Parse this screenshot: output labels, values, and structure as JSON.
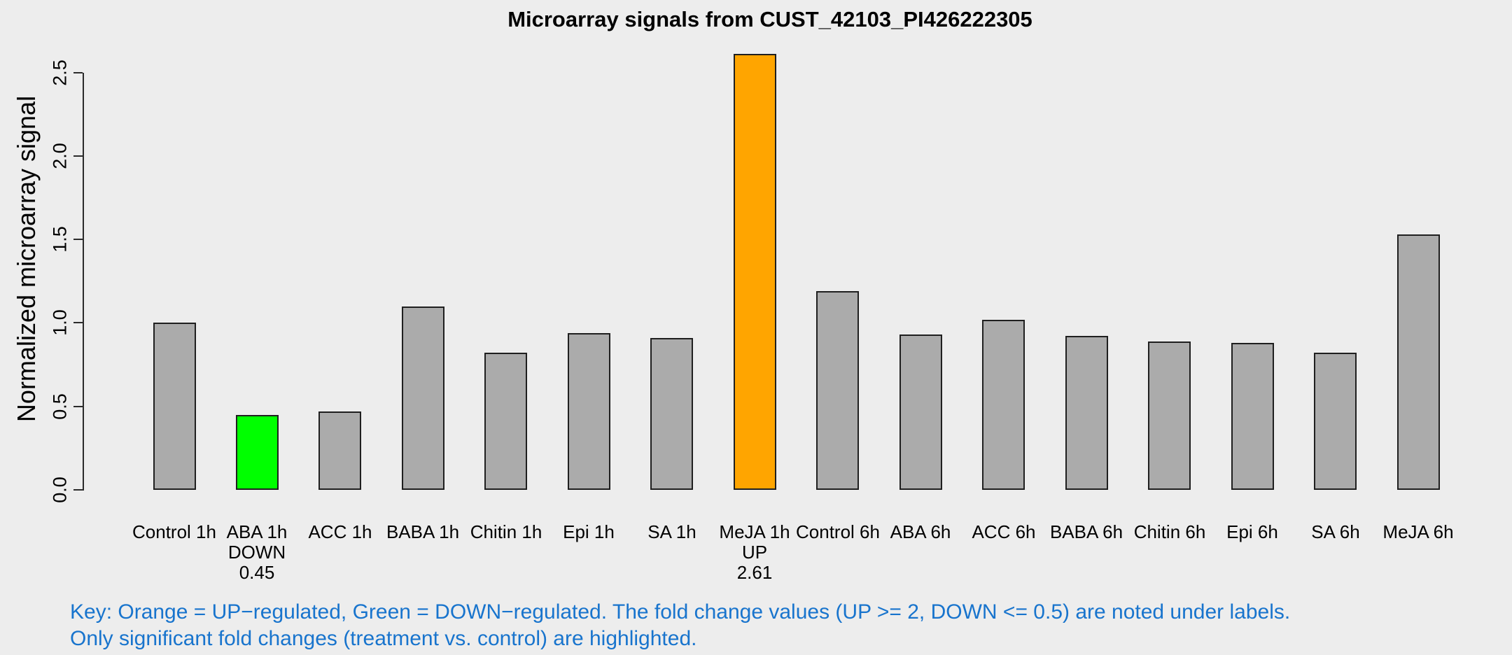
{
  "title": "Microarray signals from CUST_42103_PI426222305",
  "y_axis": {
    "label": "Normalized microarray signal",
    "ticks": [
      "0.0",
      "0.5",
      "1.0",
      "1.5",
      "2.0",
      "2.5"
    ]
  },
  "key": {
    "line1": "Key: Orange = UP−regulated, Green = DOWN−regulated. The fold change values (UP >= 2, DOWN <= 0.5) are noted under labels.",
    "line2": "Only significant fold changes (treatment vs. control) are highlighted.",
    "text_color": "#1874CD"
  },
  "colors": {
    "up_orange": "#FFA500",
    "down_green": "#00FF00",
    "bar_gray": "#ABABAB",
    "bar_border": "#1F1F1F",
    "background": "#EDEDED",
    "axis": "#2B2B2B"
  },
  "chart_data": {
    "type": "bar",
    "title": "Microarray signals from CUST_42103_PI426222305",
    "xlabel": "",
    "ylabel": "Normalized microarray signal",
    "ylim": [
      0,
      2.65
    ],
    "ytick_values": [
      0.0,
      0.5,
      1.0,
      1.5,
      2.0,
      2.5
    ],
    "ytick_labels": [
      "0.0",
      "0.5",
      "1.0",
      "1.5",
      "2.0",
      "2.5"
    ],
    "grid": false,
    "legend": "none",
    "categories": [
      "Control 1h",
      "ABA 1h",
      "ACC 1h",
      "BABA 1h",
      "Chitin 1h",
      "Epi 1h",
      "SA 1h",
      "MeJA 1h",
      "Control 6h",
      "ABA 6h",
      "ACC 6h",
      "BABA 6h",
      "Chitin 6h",
      "Epi 6h",
      "SA 6h",
      "MeJA 6h"
    ],
    "values": [
      1.0,
      0.45,
      0.47,
      1.1,
      0.82,
      0.94,
      0.91,
      2.61,
      1.19,
      0.93,
      1.02,
      0.92,
      0.89,
      0.88,
      0.82,
      1.53
    ],
    "bars": [
      {
        "label": "Control 1h",
        "value": 1.0,
        "regulation": "none",
        "annotation": []
      },
      {
        "label": "ABA 1h",
        "value": 0.45,
        "regulation": "down",
        "annotation": [
          "DOWN",
          "0.45"
        ]
      },
      {
        "label": "ACC 1h",
        "value": 0.47,
        "regulation": "none",
        "annotation": []
      },
      {
        "label": "BABA 1h",
        "value": 1.1,
        "regulation": "none",
        "annotation": []
      },
      {
        "label": "Chitin 1h",
        "value": 0.82,
        "regulation": "none",
        "annotation": []
      },
      {
        "label": "Epi 1h",
        "value": 0.94,
        "regulation": "none",
        "annotation": []
      },
      {
        "label": "SA 1h",
        "value": 0.91,
        "regulation": "none",
        "annotation": []
      },
      {
        "label": "MeJA 1h",
        "value": 2.61,
        "regulation": "up",
        "annotation": [
          "UP",
          "2.61"
        ]
      },
      {
        "label": "Control 6h",
        "value": 1.19,
        "regulation": "none",
        "annotation": []
      },
      {
        "label": "ABA 6h",
        "value": 0.93,
        "regulation": "none",
        "annotation": []
      },
      {
        "label": "ACC 6h",
        "value": 1.02,
        "regulation": "none",
        "annotation": []
      },
      {
        "label": "BABA 6h",
        "value": 0.92,
        "regulation": "none",
        "annotation": []
      },
      {
        "label": "Chitin 6h",
        "value": 0.89,
        "regulation": "none",
        "annotation": []
      },
      {
        "label": "Epi 6h",
        "value": 0.88,
        "regulation": "none",
        "annotation": []
      },
      {
        "label": "SA 6h",
        "value": 0.82,
        "regulation": "none",
        "annotation": []
      },
      {
        "label": "MeJA 6h",
        "value": 1.53,
        "regulation": "none",
        "annotation": []
      }
    ]
  }
}
